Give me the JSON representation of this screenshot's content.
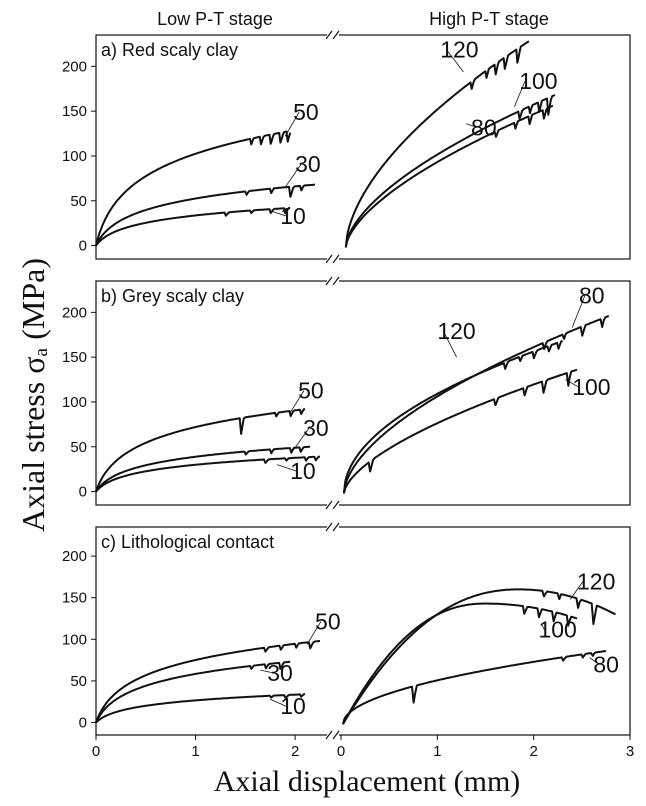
{
  "figure": {
    "stage_labels": [
      "Low P-T stage",
      "High P-T stage"
    ],
    "ylabel": "Axial stress σₐ (MPa)",
    "xlabel": "Axial displacement (mm)"
  },
  "chart_data": [
    {
      "type": "line",
      "title": "a) Red scaly clay",
      "ylim": [
        -15,
        235
      ],
      "yticks": [
        0,
        50,
        100,
        150,
        200
      ],
      "low_xlim": [
        0,
        2.3
      ],
      "high_xlim": [
        0,
        3
      ],
      "series": [
        {
          "name": "10",
          "stage": "low",
          "curve": "log",
          "end_x": 1.95,
          "end_y": 42,
          "offset_x": 0,
          "offset_y": 0,
          "b": 0.35,
          "drops": [
            [
              1.3,
              4
            ],
            [
              1.55,
              4
            ],
            [
              1.75,
              5
            ],
            [
              1.9,
              6
            ]
          ],
          "label": "10",
          "label_x": 1.85,
          "label_y": 24,
          "label_at": [
            1.77,
            38
          ]
        },
        {
          "name": "30",
          "stage": "low",
          "curve": "log",
          "end_x": 2.2,
          "end_y": 68,
          "offset_x": 0,
          "offset_y": 0,
          "b": 0.35,
          "drops": [
            [
              1.5,
              6
            ],
            [
              1.75,
              7
            ],
            [
              1.95,
              12
            ],
            [
              2.05,
              8
            ]
          ],
          "label": "30",
          "label_x": 2.0,
          "label_y": 82,
          "label_at": [
            1.9,
            65
          ]
        },
        {
          "name": "50",
          "stage": "low",
          "curve": "log",
          "end_x": 1.95,
          "end_y": 128,
          "offset_x": 0,
          "offset_y": 0,
          "b": 0.35,
          "drops": [
            [
              1.55,
              9
            ],
            [
              1.65,
              11
            ],
            [
              1.75,
              12
            ],
            [
              1.85,
              12
            ],
            [
              1.92,
              14
            ]
          ],
          "label": "50",
          "label_x": 1.98,
          "label_y": 140,
          "label_at": [
            1.9,
            122
          ]
        },
        {
          "name": "120",
          "stage": "high",
          "curve": "power",
          "end_x": 1.95,
          "end_y": 228,
          "offset_x": 0.05,
          "offset_y": -2,
          "b": 0.58,
          "drops": [
            [
              1.35,
              10
            ],
            [
              1.5,
              12
            ],
            [
              1.6,
              14
            ],
            [
              1.7,
              13
            ],
            [
              1.83,
              16
            ]
          ],
          "label": "120",
          "label_x": 1.03,
          "label_y": 210,
          "label_at": [
            1.27,
            194
          ]
        },
        {
          "name": "100",
          "stage": "high",
          "curve": "power",
          "end_x": 2.22,
          "end_y": 168,
          "offset_x": 0.05,
          "offset_y": -2,
          "b": 0.6,
          "drops": [
            [
              1.85,
              10
            ],
            [
              1.95,
              12
            ],
            [
              2.05,
              14
            ],
            [
              2.15,
              20
            ]
          ],
          "label": "100",
          "label_x": 1.85,
          "label_y": 175,
          "label_at": [
            1.8,
            155
          ]
        },
        {
          "name": "80",
          "stage": "high",
          "curve": "power",
          "end_x": 2.2,
          "end_y": 156,
          "offset_x": 0.05,
          "offset_y": -2,
          "b": 0.62,
          "drops": [
            [
              1.6,
              8
            ],
            [
              1.8,
              10
            ],
            [
              1.95,
              12
            ],
            [
              2.1,
              12
            ]
          ],
          "label": "80",
          "label_x": 1.35,
          "label_y": 123,
          "label_at": [
            1.3,
            136
          ]
        }
      ]
    },
    {
      "type": "line",
      "title": "b) Grey scaly clay",
      "ylim": [
        -15,
        235
      ],
      "yticks": [
        0,
        50,
        100,
        150,
        200
      ],
      "low_xlim": [
        0,
        2.3
      ],
      "high_xlim": [
        0,
        3
      ],
      "series": [
        {
          "name": "10",
          "stage": "low",
          "curve": "log",
          "end_x": 2.25,
          "end_y": 39,
          "offset_x": 0,
          "offset_y": 0,
          "b": 0.35,
          "drops": [
            [
              1.7,
              4
            ],
            [
              1.9,
              4
            ],
            [
              2.1,
              5
            ],
            [
              2.2,
              5
            ]
          ],
          "label": "10",
          "label_x": 1.95,
          "label_y": 14,
          "label_at": [
            1.82,
            30
          ]
        },
        {
          "name": "30",
          "stage": "low",
          "curve": "log",
          "end_x": 2.15,
          "end_y": 50,
          "offset_x": 0,
          "offset_y": 0,
          "b": 0.35,
          "drops": [
            [
              1.5,
              4
            ],
            [
              1.75,
              6
            ],
            [
              1.95,
              8
            ],
            [
              2.05,
              6
            ]
          ],
          "label": "30",
          "label_x": 2.08,
          "label_y": 62,
          "label_at": [
            1.98,
            46
          ]
        },
        {
          "name": "50",
          "stage": "low",
          "curve": "log",
          "end_x": 2.1,
          "end_y": 92,
          "offset_x": 0,
          "offset_y": 0,
          "b": 0.35,
          "drops": [
            [
              1.45,
              22
            ],
            [
              1.8,
              6
            ],
            [
              1.95,
              7
            ],
            [
              2.05,
              7
            ]
          ],
          "label": "50",
          "label_x": 2.03,
          "label_y": 104,
          "label_at": [
            1.95,
            88
          ]
        },
        {
          "name": "120",
          "stage": "high",
          "curve": "power",
          "end_x": 2.3,
          "end_y": 168,
          "offset_x": 0.03,
          "offset_y": -2,
          "b": 0.5,
          "drops": [
            [
              1.7,
              8
            ],
            [
              1.85,
              7
            ],
            [
              2.0,
              8
            ],
            [
              2.15,
              8
            ],
            [
              2.25,
              9
            ]
          ],
          "label": "120",
          "label_x": 1.0,
          "label_y": 170,
          "label_at": [
            1.2,
            150
          ]
        },
        {
          "name": "80",
          "stage": "high",
          "curve": "power",
          "end_x": 2.78,
          "end_y": 196,
          "offset_x": 0.03,
          "offset_y": -2,
          "b": 0.58,
          "drops": [
            [
              2.1,
              10
            ],
            [
              2.3,
              10
            ],
            [
              2.5,
              12
            ],
            [
              2.7,
              14
            ]
          ],
          "label": "80",
          "label_x": 2.47,
          "label_y": 210,
          "label_at": [
            2.4,
            183
          ]
        },
        {
          "name": "100",
          "stage": "high",
          "curve": "power",
          "end_x": 2.45,
          "end_y": 136,
          "offset_x": 0.03,
          "offset_y": -2,
          "b": 0.62,
          "drops": [
            [
              0.3,
              12
            ],
            [
              1.6,
              8
            ],
            [
              1.9,
              10
            ],
            [
              2.1,
              14
            ],
            [
              2.35,
              20
            ]
          ],
          "label": "100",
          "label_x": 2.4,
          "label_y": 108,
          "label_at": [
            2.33,
            125
          ]
        }
      ]
    },
    {
      "type": "line",
      "title": "c) Lithological contact",
      "ylim": [
        -15,
        235
      ],
      "yticks": [
        0,
        50,
        100,
        150,
        200
      ],
      "low_xlim": [
        0,
        2.3
      ],
      "high_xlim": [
        0,
        3
      ],
      "xticks_low": [
        0,
        1,
        2
      ],
      "xticks_high": [
        0,
        1,
        2,
        3
      ],
      "series": [
        {
          "name": "10",
          "stage": "low",
          "curve": "log",
          "end_x": 2.1,
          "end_y": 34,
          "offset_x": 0,
          "offset_y": 0,
          "b": 0.35,
          "drops": [
            [
              1.75,
              3
            ],
            [
              1.9,
              4
            ],
            [
              2.05,
              4
            ]
          ],
          "label": "10",
          "label_x": 1.85,
          "label_y": 10,
          "label_at": [
            1.75,
            28
          ]
        },
        {
          "name": "30",
          "stage": "low",
          "curve": "log",
          "end_x": 1.95,
          "end_y": 73,
          "offset_x": 0,
          "offset_y": 0,
          "b": 0.35,
          "drops": [
            [
              1.55,
              5
            ],
            [
              1.7,
              6
            ],
            [
              1.85,
              8
            ]
          ],
          "label": "30",
          "label_x": 1.72,
          "label_y": 50,
          "label_at": [
            1.65,
            63
          ]
        },
        {
          "name": "50",
          "stage": "low",
          "curve": "log",
          "end_x": 2.25,
          "end_y": 98,
          "offset_x": 0,
          "offset_y": 0,
          "b": 0.35,
          "drops": [
            [
              1.7,
              5
            ],
            [
              1.85,
              6
            ],
            [
              2.0,
              7
            ],
            [
              2.15,
              8
            ]
          ],
          "label": "50",
          "label_x": 2.2,
          "label_y": 112,
          "label_at": [
            2.12,
            94
          ]
        },
        {
          "name": "120",
          "stage": "high",
          "curve": "peak",
          "end_x": 2.85,
          "end_y": 130,
          "peak_x": 1.85,
          "peak_y": 160,
          "offset_x": 0.02,
          "offset_y": -2,
          "b": 0.55,
          "drops": [
            [
              2.1,
              8
            ],
            [
              2.25,
              12
            ],
            [
              2.45,
              16
            ],
            [
              2.62,
              24
            ]
          ],
          "label": "120",
          "label_x": 2.45,
          "label_y": 160,
          "label_at": [
            2.38,
            148
          ]
        },
        {
          "name": "100",
          "stage": "high",
          "curve": "peak",
          "end_x": 2.45,
          "end_y": 125,
          "peak_x": 1.5,
          "peak_y": 143,
          "offset_x": 0.02,
          "offset_y": -2,
          "b": 0.55,
          "drops": [
            [
              1.9,
              10
            ],
            [
              2.05,
              12
            ],
            [
              2.2,
              14
            ],
            [
              2.35,
              16
            ]
          ],
          "label": "100",
          "label_x": 2.05,
          "label_y": 102,
          "label_at": [
            2.08,
            118
          ]
        },
        {
          "name": "80",
          "stage": "high",
          "curve": "power",
          "end_x": 2.75,
          "end_y": 86,
          "offset_x": 0.02,
          "offset_y": -2,
          "b": 0.5,
          "drops": [
            [
              0.75,
              22
            ],
            [
              2.3,
              5
            ],
            [
              2.5,
              6
            ],
            [
              2.6,
              6
            ]
          ],
          "label": "80",
          "label_x": 2.62,
          "label_y": 60,
          "label_at": [
            2.58,
            78
          ]
        }
      ]
    }
  ]
}
